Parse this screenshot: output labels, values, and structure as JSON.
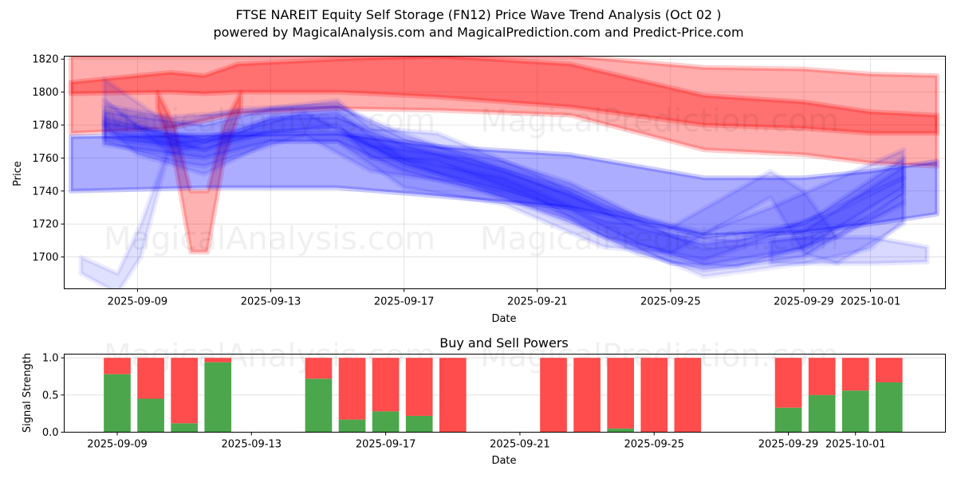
{
  "header": {
    "title": "FTSE NAREIT Equity Self Storage (FN12) Price Wave Trend Analysis (Oct 02 )",
    "subtitle": "powered by MagicalAnalysis.com and MagicalPrediction.com and Predict-Price.com"
  },
  "watermarks": [
    "MagicalAnalysis.com",
    "MagicalPrediction.com"
  ],
  "colors": {
    "red_band": "#ff0000",
    "blue_band": "#0000ff",
    "buy": "#4ca64c",
    "sell": "#ff4c4c",
    "grid": "#dddddd"
  },
  "chart_data": [
    {
      "type": "area",
      "title": "",
      "xlabel": "Date",
      "ylabel": "Price",
      "xlim": [
        "2025-09-06.8",
        "2025-10-03.25"
      ],
      "ylim": [
        1680.7,
        1821.8
      ],
      "grid": true,
      "x_ticks": [
        "2025-09-09",
        "2025-09-13",
        "2025-09-17",
        "2025-09-21",
        "2025-09-25",
        "2025-09-29",
        "2025-10-01"
      ],
      "y_ticks": [
        1700,
        1720,
        1740,
        1760,
        1780,
        1800,
        1820
      ],
      "series": [
        {
          "name": "red-wide-band",
          "color": "red",
          "opacity": 0.32,
          "x": [
            "2025-09-07",
            "2025-09-10",
            "2025-09-12",
            "2025-09-15",
            "2025-09-18",
            "2025-09-22",
            "2025-09-26",
            "2025-09-29",
            "2025-10-01",
            "2025-10-03"
          ],
          "upper": [
            1822,
            1822,
            1822,
            1822,
            1822,
            1822,
            1815,
            1814,
            1811,
            1810
          ],
          "lower": [
            1775,
            1778,
            1787,
            1790,
            1789,
            1786,
            1765,
            1762,
            1757,
            1755
          ]
        },
        {
          "name": "red-core-band",
          "color": "red",
          "opacity": 0.35,
          "x": [
            "2025-09-07",
            "2025-09-10",
            "2025-09-11",
            "2025-09-12",
            "2025-09-15",
            "2025-09-18",
            "2025-09-22",
            "2025-09-26",
            "2025-09-29",
            "2025-10-01",
            "2025-10-03"
          ],
          "upper": [
            1806,
            1812,
            1810,
            1817,
            1820,
            1822,
            1817,
            1798,
            1794,
            1788,
            1786
          ],
          "lower": [
            1799,
            1800,
            1799,
            1800,
            1800,
            1797,
            1791,
            1780,
            1778,
            1775,
            1775
          ]
        },
        {
          "name": "red-dip-band",
          "color": "red",
          "opacity": 0.3,
          "x": [
            "2025-09-09.6",
            "2025-09-10.1",
            "2025-09-10.6",
            "2025-09-11.1",
            "2025-09-11.6",
            "2025-09-12.1"
          ],
          "upper": [
            1800,
            1780,
            1740,
            1740,
            1780,
            1800
          ],
          "lower": [
            1790,
            1760,
            1703,
            1703,
            1760,
            1790
          ]
        },
        {
          "name": "blue-wide-band",
          "color": "blue",
          "opacity": 0.32,
          "x": [
            "2025-09-07",
            "2025-09-11",
            "2025-09-15",
            "2025-09-18",
            "2025-09-22",
            "2025-09-26",
            "2025-09-29",
            "2025-10-01",
            "2025-10-03"
          ],
          "upper": [
            1773,
            1774,
            1775,
            1767,
            1762,
            1748,
            1748,
            1752,
            1758
          ],
          "lower": [
            1740,
            1742,
            1742,
            1737,
            1730,
            1713,
            1715,
            1720,
            1726
          ]
        },
        {
          "name": "blue-wave-1",
          "color": "blue",
          "opacity": 0.18,
          "x": [
            "2025-09-08",
            "2025-09-11",
            "2025-09-13",
            "2025-09-15",
            "2025-09-17",
            "2025-09-20",
            "2025-09-22",
            "2025-09-24",
            "2025-09-26",
            "2025-09-29",
            "2025-10-02"
          ],
          "upper": [
            1788,
            1780,
            1790,
            1792,
            1772,
            1758,
            1745,
            1725,
            1712,
            1720,
            1760
          ],
          "lower": [
            1772,
            1765,
            1776,
            1778,
            1756,
            1740,
            1728,
            1708,
            1695,
            1705,
            1742
          ]
        },
        {
          "name": "blue-wave-2",
          "color": "blue",
          "opacity": 0.18,
          "x": [
            "2025-09-08",
            "2025-09-11",
            "2025-09-13",
            "2025-09-15",
            "2025-09-17",
            "2025-09-20",
            "2025-09-22",
            "2025-09-24",
            "2025-09-26",
            "2025-09-29",
            "2025-10-02"
          ],
          "upper": [
            1782,
            1772,
            1784,
            1785,
            1768,
            1752,
            1738,
            1718,
            1708,
            1716,
            1755
          ],
          "lower": [
            1768,
            1760,
            1770,
            1770,
            1752,
            1736,
            1722,
            1702,
            1692,
            1700,
            1738
          ]
        },
        {
          "name": "blue-wave-3",
          "color": "blue",
          "opacity": 0.15,
          "x": [
            "2025-09-08",
            "2025-09-10",
            "2025-09-12",
            "2025-09-15",
            "2025-09-16",
            "2025-09-18",
            "2025-09-21",
            "2025-09-23",
            "2025-09-26",
            "2025-09-28",
            "2025-10-02"
          ],
          "upper": [
            1792,
            1785,
            1788,
            1795,
            1778,
            1775,
            1750,
            1730,
            1715,
            1730,
            1765
          ],
          "lower": [
            1776,
            1768,
            1772,
            1780,
            1760,
            1758,
            1735,
            1712,
            1698,
            1712,
            1748
          ]
        },
        {
          "name": "blue-wave-4",
          "color": "blue",
          "opacity": 0.15,
          "x": [
            "2025-09-08",
            "2025-09-10",
            "2025-09-11",
            "2025-09-14",
            "2025-09-16",
            "2025-09-19",
            "2025-09-22",
            "2025-09-25",
            "2025-09-27",
            "2025-09-30",
            "2025-10-02"
          ],
          "upper": [
            1785,
            1775,
            1770,
            1788,
            1768,
            1760,
            1742,
            1714,
            1710,
            1728,
            1748
          ],
          "lower": [
            1770,
            1758,
            1755,
            1774,
            1752,
            1744,
            1724,
            1696,
            1694,
            1712,
            1732
          ]
        },
        {
          "name": "blue-wave-5",
          "color": "blue",
          "opacity": 0.14,
          "x": [
            "2025-09-08",
            "2025-09-09",
            "2025-09-11",
            "2025-09-13",
            "2025-09-15",
            "2025-09-17",
            "2025-09-20",
            "2025-09-23",
            "2025-09-25",
            "2025-09-28",
            "2025-09-29",
            "2025-09-30",
            "2025-10-02"
          ],
          "upper": [
            1795,
            1780,
            1765,
            1785,
            1788,
            1760,
            1748,
            1722,
            1718,
            1752,
            1740,
            1712,
            1735
          ],
          "lower": [
            1780,
            1762,
            1750,
            1770,
            1770,
            1742,
            1732,
            1706,
            1702,
            1736,
            1702,
            1696,
            1720
          ]
        },
        {
          "name": "blue-wave-6",
          "color": "blue",
          "opacity": 0.12,
          "x": [
            "2025-09-08",
            "2025-09-10",
            "2025-09-12",
            "2025-09-15",
            "2025-09-17",
            "2025-09-21",
            "2025-09-24",
            "2025-09-26",
            "2025-09-29",
            "2025-10-01",
            "2025-10-02"
          ],
          "upper": [
            1808,
            1780,
            1790,
            1792,
            1775,
            1745,
            1722,
            1705,
            1712,
            1725,
            1740
          ],
          "lower": [
            1795,
            1762,
            1775,
            1775,
            1758,
            1728,
            1705,
            1688,
            1696,
            1705,
            1722
          ]
        },
        {
          "name": "blue-check-band",
          "color": "blue",
          "opacity": 0.12,
          "x": [
            "2025-09-07.3",
            "2025-09-08.4",
            "2025-09-09.1",
            "2025-09-09.9"
          ],
          "upper": [
            1700,
            1690,
            1720,
            1765
          ],
          "lower": [
            1690,
            1678,
            1700,
            1760
          ]
        },
        {
          "name": "blue-tail-band",
          "color": "blue",
          "opacity": 0.15,
          "x": [
            "2025-09-28",
            "2025-09-29",
            "2025-10-01",
            "2025-10-02.7"
          ],
          "upper": [
            1710,
            1712,
            1712,
            1706
          ],
          "lower": [
            1696,
            1696,
            1696,
            1697
          ]
        }
      ]
    },
    {
      "type": "bar",
      "title": "Buy and Sell Powers",
      "xlabel": "Date",
      "ylabel": "Signal Strength",
      "ylim": [
        0,
        1.05
      ],
      "xlim": [
        "2025-09-07.42",
        "2025-10-03.68"
      ],
      "grid": true,
      "x_ticks": [
        "2025-09-09",
        "2025-09-13",
        "2025-09-17",
        "2025-09-21",
        "2025-09-25",
        "2025-09-29",
        "2025-10-01"
      ],
      "y_ticks": [
        "0.0",
        "0.5",
        "1.0"
      ],
      "categories": [
        "2025-09-09",
        "2025-09-10",
        "2025-09-11",
        "2025-09-12",
        "2025-09-15",
        "2025-09-16",
        "2025-09-17",
        "2025-09-18",
        "2025-09-19",
        "2025-09-22",
        "2025-09-23",
        "2025-09-24",
        "2025-09-25",
        "2025-09-26",
        "2025-09-29",
        "2025-09-30",
        "2025-10-01",
        "2025-10-02"
      ],
      "series": [
        {
          "name": "Buy",
          "values": [
            0.78,
            0.45,
            0.12,
            0.94,
            0.72,
            0.17,
            0.28,
            0.22,
            0.0,
            0.0,
            0.0,
            0.05,
            0.0,
            0.0,
            0.33,
            0.5,
            0.56,
            0.67
          ]
        },
        {
          "name": "Sell",
          "values": [
            0.22,
            0.55,
            0.88,
            0.06,
            0.28,
            0.83,
            0.72,
            0.78,
            1.0,
            1.0,
            1.0,
            0.95,
            1.0,
            1.0,
            0.67,
            0.5,
            0.44,
            0.33
          ]
        }
      ]
    }
  ]
}
